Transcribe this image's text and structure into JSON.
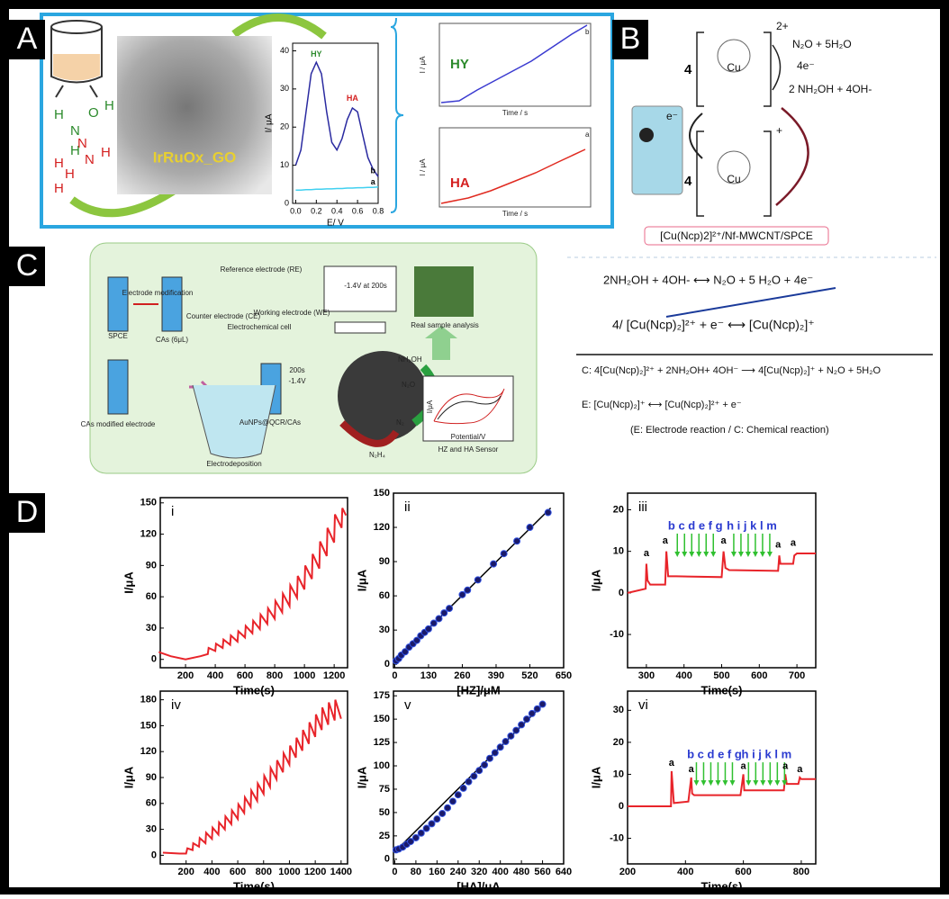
{
  "panel_labels": [
    "A",
    "B",
    "C",
    "D"
  ],
  "panel_a": {
    "material": "IrRuOx_GO",
    "hydroxylamine": [
      "H",
      "N",
      "O",
      "H",
      "H"
    ],
    "hydrazine": [
      "H",
      "N",
      "H",
      "N",
      "H",
      "H"
    ],
    "insets": [
      {
        "analyte": "HY",
        "xlabel": "Time / s",
        "ylabel": "I / μA",
        "curve": "b"
      },
      {
        "analyte": "HA",
        "xlabel": "Time / s",
        "ylabel": "I / μA",
        "curve": "a"
      }
    ]
  },
  "panel_b": {
    "products": "N₂O + 5H₂O",
    "electrons": "4e⁻",
    "reactants": "2 NH₂OH + 4OH-",
    "charge_top": "2+",
    "charge_bottom": "+",
    "coefficient_top": "4",
    "coefficient_bottom": "4",
    "metal_top": "Cu",
    "metal_bottom": "Cu",
    "electron": "e⁻",
    "electrode": "[Cu(Ncp)2]²⁺/Nf-MWCNT/SPCE"
  },
  "panel_c": {
    "schematic": [
      "Electrode modification",
      "SPCE",
      "CAs (6μL)",
      "CAs modified electrode",
      "Counter electrode (CE)",
      "Reference electrode (RE)",
      "Working electrode (WE)",
      "Electrochemical cell",
      "-1.4V at 200s",
      "Electrodeposition",
      "200s",
      "-1.4V",
      "AuNPs@QCR/CAs",
      "Real sample analysis",
      "NH₂OH",
      "N₂O",
      "N₂",
      "N₂H₄",
      "HZ and HA Sensor",
      "Potential/V",
      "I/μA"
    ],
    "reactions": [
      "2NH₂OH + 4OH-  ⟷  N₂O + 5 H₂O + 4e⁻",
      "4/ [Cu(Ncp)₂]²⁺ + e⁻  ⟷  [Cu(Ncp)₂]⁺",
      "C:  4[Cu(Ncp)₂]²⁺ + 2NH₂OH+ 4OH⁻ ⟶ 4[Cu(Ncp)₂]⁺ + N₂O + 5H₂O",
      "E:           [Cu(Ncp)₂]⁺  ⟷  [Cu(Ncp)₂]²⁺ + e⁻",
      "(E: Electrode reaction / C: Chemical reaction)"
    ]
  },
  "chart_data": [
    {
      "type": "line",
      "xlabel": "E/ V",
      "ylabel": "I/ μA",
      "xlim": [
        -0.03,
        0.8
      ],
      "ylim": [
        0,
        42
      ],
      "xticks": [
        {
          "value": 0,
          "label": "0.0"
        },
        0.2,
        0.4,
        0.6,
        0.8
      ],
      "yticks": [
        0,
        10,
        20,
        30,
        40
      ],
      "annotations": [
        "HY",
        "HA",
        "b",
        "a"
      ],
      "series": [
        {
          "color": "#2a2aa0",
          "x": [
            0,
            0.05,
            0.1,
            0.15,
            0.2,
            0.25,
            0.3,
            0.35,
            0.4,
            0.45,
            0.5,
            0.55,
            0.6,
            0.65,
            0.7,
            0.75,
            0.8
          ],
          "values": [
            10,
            14,
            24,
            34,
            37,
            34,
            24,
            16,
            14,
            17,
            22,
            25,
            24,
            18,
            12,
            9,
            7
          ]
        },
        {
          "color": "#40d0f0",
          "x": [
            0,
            0.05,
            0.1,
            0.15,
            0.2,
            0.25,
            0.3,
            0.35,
            0.4,
            0.45,
            0.5,
            0.55,
            0.6,
            0.65,
            0.7,
            0.75,
            0.8
          ],
          "values": [
            3.5,
            3.5,
            3.6,
            3.6,
            3.7,
            3.7,
            3.8,
            3.8,
            3.9,
            3.9,
            4,
            4,
            4.1,
            4.1,
            4.2,
            4.2,
            4.3
          ]
        }
      ]
    },
    {
      "type": "line",
      "panel": "i",
      "xlabel": "Time(s)",
      "ylabel": "I/μA",
      "xlim": [
        30,
        1290
      ],
      "ylim": [
        -8,
        155
      ],
      "xticks": [
        200,
        400,
        600,
        800,
        1000,
        1200
      ],
      "yticks": [
        0,
        30,
        60,
        90,
        120,
        150
      ],
      "series": [
        {
          "color": "#e8242a",
          "x": [
            20,
            100,
            200,
            300,
            350,
            355,
            400,
            405,
            450,
            455,
            500,
            505,
            550,
            555,
            600,
            605,
            650,
            655,
            700,
            705,
            750,
            755,
            800,
            805,
            850,
            855,
            900,
            905,
            950,
            955,
            1000,
            1005,
            1050,
            1055,
            1100,
            1105,
            1150,
            1155,
            1200,
            1205,
            1250,
            1255,
            1280
          ],
          "values": [
            7,
            3,
            0,
            3,
            5,
            11,
            8,
            15,
            11,
            19,
            14,
            23,
            17,
            27,
            21,
            32,
            25,
            37,
            29,
            43,
            34,
            49,
            39,
            56,
            45,
            63,
            51,
            71,
            59,
            80,
            67,
            90,
            77,
            101,
            87,
            113,
            99,
            126,
            112,
            139,
            126,
            145,
            138
          ]
        }
      ]
    },
    {
      "type": "scatter",
      "panel": "ii",
      "xlabel": "[HZ]/μM",
      "ylabel": "I/μA",
      "xlim": [
        -5,
        650
      ],
      "ylim": [
        -3,
        150
      ],
      "xticks": [
        0,
        130,
        260,
        390,
        520,
        650
      ],
      "yticks": [
        0,
        30,
        60,
        90,
        120,
        150
      ],
      "series": [
        {
          "color": "#1a1a6a",
          "x": [
            5,
            15,
            25,
            40,
            55,
            70,
            85,
            100,
            115,
            130,
            150,
            170,
            190,
            210,
            260,
            280,
            320,
            380,
            420,
            470,
            520,
            590
          ],
          "values": [
            3,
            5,
            8,
            11,
            15,
            18,
            21,
            25,
            28,
            31,
            36,
            40,
            45,
            49,
            61,
            65,
            74,
            88,
            97,
            108,
            120,
            133
          ]
        }
      ],
      "fit": {
        "color": "#000000",
        "x": [
          0,
          600
        ],
        "values": [
          2,
          137
        ]
      }
    },
    {
      "type": "line",
      "panel": "iii",
      "xlabel": "Time(s)",
      "ylabel": "I/μA",
      "xlim": [
        250,
        750
      ],
      "ylim": [
        -18,
        24
      ],
      "xticks": [
        300,
        400,
        500,
        600,
        700
      ],
      "yticks": [
        -10,
        0,
        10,
        20
      ],
      "annotations": [
        "a",
        "a",
        "b c d e f g",
        "a",
        "h i j k l m",
        "a",
        "a"
      ],
      "series": [
        {
          "color": "#e8242a",
          "x": [
            250,
            298,
            300,
            303,
            310,
            350,
            353,
            358,
            380,
            500,
            505,
            510,
            520,
            650,
            653,
            656,
            680,
            690,
            693,
            700,
            750
          ],
          "values": [
            0,
            1,
            7,
            3,
            2,
            2,
            10,
            4,
            4,
            3.8,
            10,
            6,
            5.5,
            5.3,
            9,
            7,
            7,
            7,
            9,
            9.5,
            9.5
          ]
        }
      ]
    },
    {
      "type": "line",
      "panel": "iv",
      "xlabel": "Time(s)",
      "ylabel": "I/μA",
      "xlim": [
        0,
        1450
      ],
      "ylim": [
        -10,
        190
      ],
      "xticks": [
        200,
        400,
        600,
        800,
        1000,
        1200,
        1400
      ],
      "yticks": [
        0,
        30,
        60,
        90,
        120,
        150,
        180
      ],
      "series": [
        {
          "color": "#e8242a",
          "x": [
            20,
            150,
            200,
            210,
            250,
            255,
            300,
            305,
            350,
            355,
            400,
            405,
            450,
            455,
            500,
            505,
            550,
            555,
            600,
            605,
            650,
            655,
            700,
            705,
            750,
            755,
            800,
            805,
            850,
            855,
            900,
            905,
            950,
            955,
            1000,
            1005,
            1050,
            1055,
            1100,
            1105,
            1150,
            1155,
            1200,
            1205,
            1250,
            1255,
            1300,
            1305,
            1350,
            1355,
            1400
          ],
          "values": [
            3,
            2,
            2,
            8,
            6,
            14,
            10,
            20,
            14,
            26,
            19,
            32,
            24,
            38,
            30,
            45,
            36,
            52,
            42,
            59,
            49,
            67,
            56,
            75,
            63,
            83,
            71,
            92,
            79,
            101,
            88,
            110,
            96,
            118,
            105,
            127,
            113,
            136,
            121,
            145,
            129,
            154,
            137,
            163,
            145,
            171,
            151,
            177,
            156,
            180,
            158
          ]
        }
      ]
    },
    {
      "type": "scatter",
      "panel": "v",
      "xlabel": "[HA]/μA",
      "ylabel": "I/μA",
      "xlim": [
        -5,
        640
      ],
      "ylim": [
        -5,
        180
      ],
      "xticks": [
        0,
        80,
        160,
        240,
        320,
        400,
        480,
        560,
        640
      ],
      "yticks": [
        0,
        25,
        50,
        75,
        100,
        125,
        150,
        175
      ],
      "series": [
        {
          "color": "#1a1a6a",
          "x": [
            5,
            15,
            30,
            45,
            60,
            80,
            100,
            120,
            140,
            160,
            180,
            200,
            220,
            240,
            260,
            280,
            300,
            320,
            340,
            360,
            380,
            400,
            420,
            440,
            460,
            480,
            500,
            520,
            540,
            560
          ],
          "values": [
            10,
            11,
            13,
            16,
            19,
            23,
            28,
            33,
            38,
            43,
            49,
            55,
            62,
            69,
            76,
            83,
            89,
            95,
            101,
            108,
            114,
            120,
            126,
            132,
            138,
            144,
            150,
            156,
            161,
            166
          ]
        }
      ],
      "fit": {
        "color": "#000000",
        "x": [
          0,
          570
        ],
        "values": [
          8,
          168
        ]
      }
    },
    {
      "type": "line",
      "panel": "vi",
      "xlabel": "Time(s)",
      "ylabel": "I/μA",
      "xlim": [
        200,
        850
      ],
      "ylim": [
        -18,
        36
      ],
      "xticks": [
        200,
        400,
        600,
        800
      ],
      "yticks": [
        -10,
        0,
        10,
        20,
        30
      ],
      "annotations": [
        "a",
        "a",
        "b c d e f g",
        "a",
        "h i j k l m",
        "a",
        "a"
      ],
      "series": [
        {
          "color": "#e8242a",
          "x": [
            200,
            340,
            350,
            352,
            360,
            410,
            420,
            423,
            430,
            590,
            600,
            603,
            610,
            740,
            745,
            750,
            790,
            795,
            800,
            850
          ],
          "values": [
            0,
            0,
            0,
            11,
            1,
            1.5,
            9,
            4,
            3.5,
            3.5,
            10,
            5,
            5,
            5,
            10,
            7,
            7,
            9,
            8.5,
            8.5
          ]
        }
      ]
    }
  ]
}
